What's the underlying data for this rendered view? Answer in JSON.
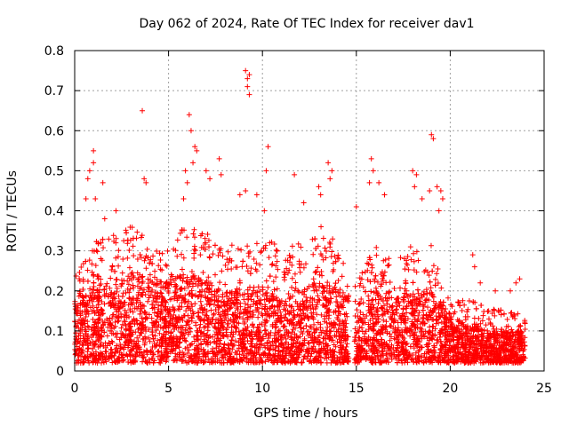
{
  "chart_data": {
    "type": "scatter",
    "title": "Day 062 of 2024, Rate Of TEC Index for receiver dav1",
    "xlabel": "GPS time / hours",
    "ylabel": "ROTI / TECUs",
    "xlim": [
      0,
      25
    ],
    "ylim": [
      0,
      0.8
    ],
    "xticks": [
      0,
      5,
      10,
      15,
      20,
      25
    ],
    "yticks": [
      0,
      0.1,
      0.2,
      0.3,
      0.4,
      0.5,
      0.6,
      0.7,
      0.8
    ],
    "xtick_labels": [
      "0",
      "5",
      "10",
      "15",
      "20",
      "25"
    ],
    "ytick_labels": [
      "0",
      "0.1",
      "0.2",
      "0.3",
      "0.4",
      "0.5",
      "0.6",
      "0.7",
      "0.8"
    ],
    "grid": true,
    "marker": "+",
    "color": "#ff0000",
    "data_gap_hours": [
      14.6,
      14.9
    ],
    "envelope": [
      {
        "x": 0.0,
        "typical": 0.1,
        "upper": 0.22
      },
      {
        "x": 1.0,
        "typical": 0.12,
        "upper": 0.3
      },
      {
        "x": 2.0,
        "typical": 0.13,
        "upper": 0.33
      },
      {
        "x": 3.0,
        "typical": 0.14,
        "upper": 0.35
      },
      {
        "x": 4.0,
        "typical": 0.13,
        "upper": 0.3
      },
      {
        "x": 5.0,
        "typical": 0.13,
        "upper": 0.3
      },
      {
        "x": 6.0,
        "typical": 0.14,
        "upper": 0.35
      },
      {
        "x": 7.0,
        "typical": 0.13,
        "upper": 0.33
      },
      {
        "x": 8.0,
        "typical": 0.11,
        "upper": 0.28
      },
      {
        "x": 9.0,
        "typical": 0.12,
        "upper": 0.32
      },
      {
        "x": 10.0,
        "typical": 0.12,
        "upper": 0.33
      },
      {
        "x": 11.0,
        "typical": 0.1,
        "upper": 0.28
      },
      {
        "x": 12.0,
        "typical": 0.11,
        "upper": 0.3
      },
      {
        "x": 13.0,
        "typical": 0.13,
        "upper": 0.35
      },
      {
        "x": 14.0,
        "typical": 0.12,
        "upper": 0.3
      },
      {
        "x": 14.6,
        "typical": 0.1,
        "upper": 0.25
      },
      {
        "x": 15.0,
        "typical": 0.08,
        "upper": 0.2
      },
      {
        "x": 16.0,
        "typical": 0.12,
        "upper": 0.3
      },
      {
        "x": 17.0,
        "typical": 0.1,
        "upper": 0.25
      },
      {
        "x": 18.0,
        "typical": 0.11,
        "upper": 0.3
      },
      {
        "x": 19.0,
        "typical": 0.11,
        "upper": 0.3
      },
      {
        "x": 20.0,
        "typical": 0.07,
        "upper": 0.15
      },
      {
        "x": 21.0,
        "typical": 0.06,
        "upper": 0.16
      },
      {
        "x": 22.0,
        "typical": 0.05,
        "upper": 0.14
      },
      {
        "x": 23.0,
        "typical": 0.05,
        "upper": 0.13
      },
      {
        "x": 24.0,
        "typical": 0.05,
        "upper": 0.12
      }
    ],
    "outliers": [
      {
        "x": 0.6,
        "y": 0.43
      },
      {
        "x": 0.7,
        "y": 0.48
      },
      {
        "x": 0.8,
        "y": 0.5
      },
      {
        "x": 1.0,
        "y": 0.55
      },
      {
        "x": 1.0,
        "y": 0.52
      },
      {
        "x": 1.1,
        "y": 0.43
      },
      {
        "x": 1.5,
        "y": 0.47
      },
      {
        "x": 1.6,
        "y": 0.38
      },
      {
        "x": 2.2,
        "y": 0.4
      },
      {
        "x": 3.6,
        "y": 0.65
      },
      {
        "x": 3.7,
        "y": 0.48
      },
      {
        "x": 3.8,
        "y": 0.47
      },
      {
        "x": 5.8,
        "y": 0.43
      },
      {
        "x": 6.1,
        "y": 0.64
      },
      {
        "x": 6.2,
        "y": 0.6
      },
      {
        "x": 6.4,
        "y": 0.56
      },
      {
        "x": 6.3,
        "y": 0.52
      },
      {
        "x": 6.5,
        "y": 0.55
      },
      {
        "x": 5.9,
        "y": 0.5
      },
      {
        "x": 6.0,
        "y": 0.47
      },
      {
        "x": 7.0,
        "y": 0.5
      },
      {
        "x": 7.2,
        "y": 0.48
      },
      {
        "x": 7.7,
        "y": 0.53
      },
      {
        "x": 7.8,
        "y": 0.49
      },
      {
        "x": 8.8,
        "y": 0.44
      },
      {
        "x": 9.1,
        "y": 0.75
      },
      {
        "x": 9.2,
        "y": 0.73
      },
      {
        "x": 9.3,
        "y": 0.74
      },
      {
        "x": 9.2,
        "y": 0.71
      },
      {
        "x": 9.3,
        "y": 0.69
      },
      {
        "x": 9.1,
        "y": 0.45
      },
      {
        "x": 9.7,
        "y": 0.44
      },
      {
        "x": 10.3,
        "y": 0.56
      },
      {
        "x": 10.1,
        "y": 0.4
      },
      {
        "x": 10.2,
        "y": 0.5
      },
      {
        "x": 11.7,
        "y": 0.49
      },
      {
        "x": 12.2,
        "y": 0.42
      },
      {
        "x": 13.0,
        "y": 0.46
      },
      {
        "x": 13.1,
        "y": 0.44
      },
      {
        "x": 13.5,
        "y": 0.52
      },
      {
        "x": 13.7,
        "y": 0.5
      },
      {
        "x": 13.6,
        "y": 0.48
      },
      {
        "x": 15.0,
        "y": 0.41
      },
      {
        "x": 15.8,
        "y": 0.53
      },
      {
        "x": 15.9,
        "y": 0.5
      },
      {
        "x": 15.7,
        "y": 0.47
      },
      {
        "x": 16.2,
        "y": 0.47
      },
      {
        "x": 16.5,
        "y": 0.44
      },
      {
        "x": 18.0,
        "y": 0.5
      },
      {
        "x": 18.2,
        "y": 0.49
      },
      {
        "x": 18.1,
        "y": 0.46
      },
      {
        "x": 18.5,
        "y": 0.43
      },
      {
        "x": 19.0,
        "y": 0.59
      },
      {
        "x": 19.1,
        "y": 0.58
      },
      {
        "x": 18.9,
        "y": 0.45
      },
      {
        "x": 19.5,
        "y": 0.45
      },
      {
        "x": 19.6,
        "y": 0.43
      },
      {
        "x": 19.4,
        "y": 0.4
      },
      {
        "x": 19.3,
        "y": 0.46
      },
      {
        "x": 21.2,
        "y": 0.29
      },
      {
        "x": 21.3,
        "y": 0.26
      },
      {
        "x": 21.6,
        "y": 0.22
      },
      {
        "x": 22.4,
        "y": 0.2
      },
      {
        "x": 23.5,
        "y": 0.22
      },
      {
        "x": 23.7,
        "y": 0.23
      },
      {
        "x": 23.2,
        "y": 0.2
      }
    ]
  }
}
